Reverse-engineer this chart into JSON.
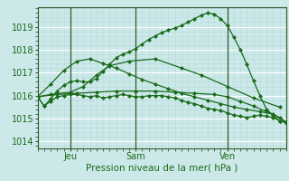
{
  "xlabel": "Pression niveau de la mer( hPa )",
  "bg_color": "#cce8e8",
  "grid_minor_color": "#b8dede",
  "grid_major_color": "#ffffff",
  "line_color": "#1a6b1a",
  "spine_color": "#2a5a2a",
  "ylim": [
    1013.7,
    1019.85
  ],
  "yticks": [
    1014,
    1015,
    1016,
    1017,
    1018,
    1019
  ],
  "xlim": [
    0,
    38
  ],
  "vlines_x": [
    5,
    15,
    29
  ],
  "jeu_x": 5,
  "sam_x": 15,
  "ven_x": 29,
  "lines": [
    {
      "x": [
        0,
        1,
        2,
        3,
        4,
        5,
        6,
        7,
        8,
        9,
        10,
        11,
        12,
        13,
        14,
        15,
        16,
        17,
        18,
        19,
        20,
        21,
        22,
        23,
        24,
        25,
        26,
        27,
        28,
        29,
        30,
        31,
        32,
        33,
        34,
        35,
        36,
        37,
        38
      ],
      "y": [
        1015.95,
        1015.55,
        1015.75,
        1015.95,
        1016.0,
        1016.05,
        1016.05,
        1016.0,
        1015.95,
        1016.0,
        1015.9,
        1015.95,
        1016.0,
        1016.05,
        1016.0,
        1015.95,
        1015.95,
        1016.0,
        1016.0,
        1016.0,
        1015.95,
        1015.9,
        1015.8,
        1015.7,
        1015.65,
        1015.55,
        1015.45,
        1015.4,
        1015.35,
        1015.25,
        1015.15,
        1015.1,
        1015.05,
        1015.1,
        1015.15,
        1015.1,
        1015.05,
        1014.9,
        1014.85
      ]
    },
    {
      "x": [
        0,
        2,
        5,
        7,
        9,
        11,
        14,
        18,
        22,
        25,
        29,
        33,
        37
      ],
      "y": [
        1015.95,
        1016.05,
        1016.15,
        1016.4,
        1016.9,
        1017.3,
        1017.5,
        1017.6,
        1017.2,
        1016.9,
        1016.4,
        1015.9,
        1015.5
      ]
    },
    {
      "x": [
        0,
        2,
        4,
        6,
        8,
        10,
        12,
        14,
        16,
        18,
        20,
        22,
        24,
        26,
        28,
        30,
        32,
        34,
        36,
        38
      ],
      "y": [
        1015.95,
        1016.5,
        1017.1,
        1017.5,
        1017.6,
        1017.4,
        1017.2,
        1016.95,
        1016.7,
        1016.5,
        1016.3,
        1016.1,
        1015.95,
        1015.8,
        1015.65,
        1015.5,
        1015.4,
        1015.3,
        1015.2,
        1014.85
      ]
    },
    {
      "x": [
        0,
        1,
        2,
        3,
        4,
        5,
        6,
        7,
        8,
        9,
        10,
        11,
        12,
        13,
        14,
        15,
        16,
        17,
        18,
        19,
        20,
        21,
        22,
        23,
        24,
        25,
        26,
        27,
        28,
        29,
        30,
        31,
        32,
        33,
        34,
        35,
        36,
        37,
        38
      ],
      "y": [
        1015.95,
        1015.55,
        1015.85,
        1016.2,
        1016.45,
        1016.6,
        1016.65,
        1016.6,
        1016.6,
        1016.75,
        1017.05,
        1017.35,
        1017.65,
        1017.8,
        1017.9,
        1018.05,
        1018.25,
        1018.45,
        1018.6,
        1018.75,
        1018.85,
        1018.95,
        1019.05,
        1019.2,
        1019.35,
        1019.5,
        1019.6,
        1019.55,
        1019.35,
        1019.05,
        1018.55,
        1018.0,
        1017.35,
        1016.65,
        1016.0,
        1015.4,
        1015.15,
        1014.9,
        1014.82
      ]
    },
    {
      "x": [
        0,
        3,
        6,
        9,
        12,
        15,
        18,
        21,
        24,
        27,
        29,
        31,
        33,
        35,
        37,
        38
      ],
      "y": [
        1015.95,
        1016.05,
        1016.1,
        1016.15,
        1016.2,
        1016.2,
        1016.2,
        1016.15,
        1016.1,
        1016.05,
        1015.95,
        1015.75,
        1015.55,
        1015.3,
        1015.05,
        1014.85
      ]
    }
  ]
}
